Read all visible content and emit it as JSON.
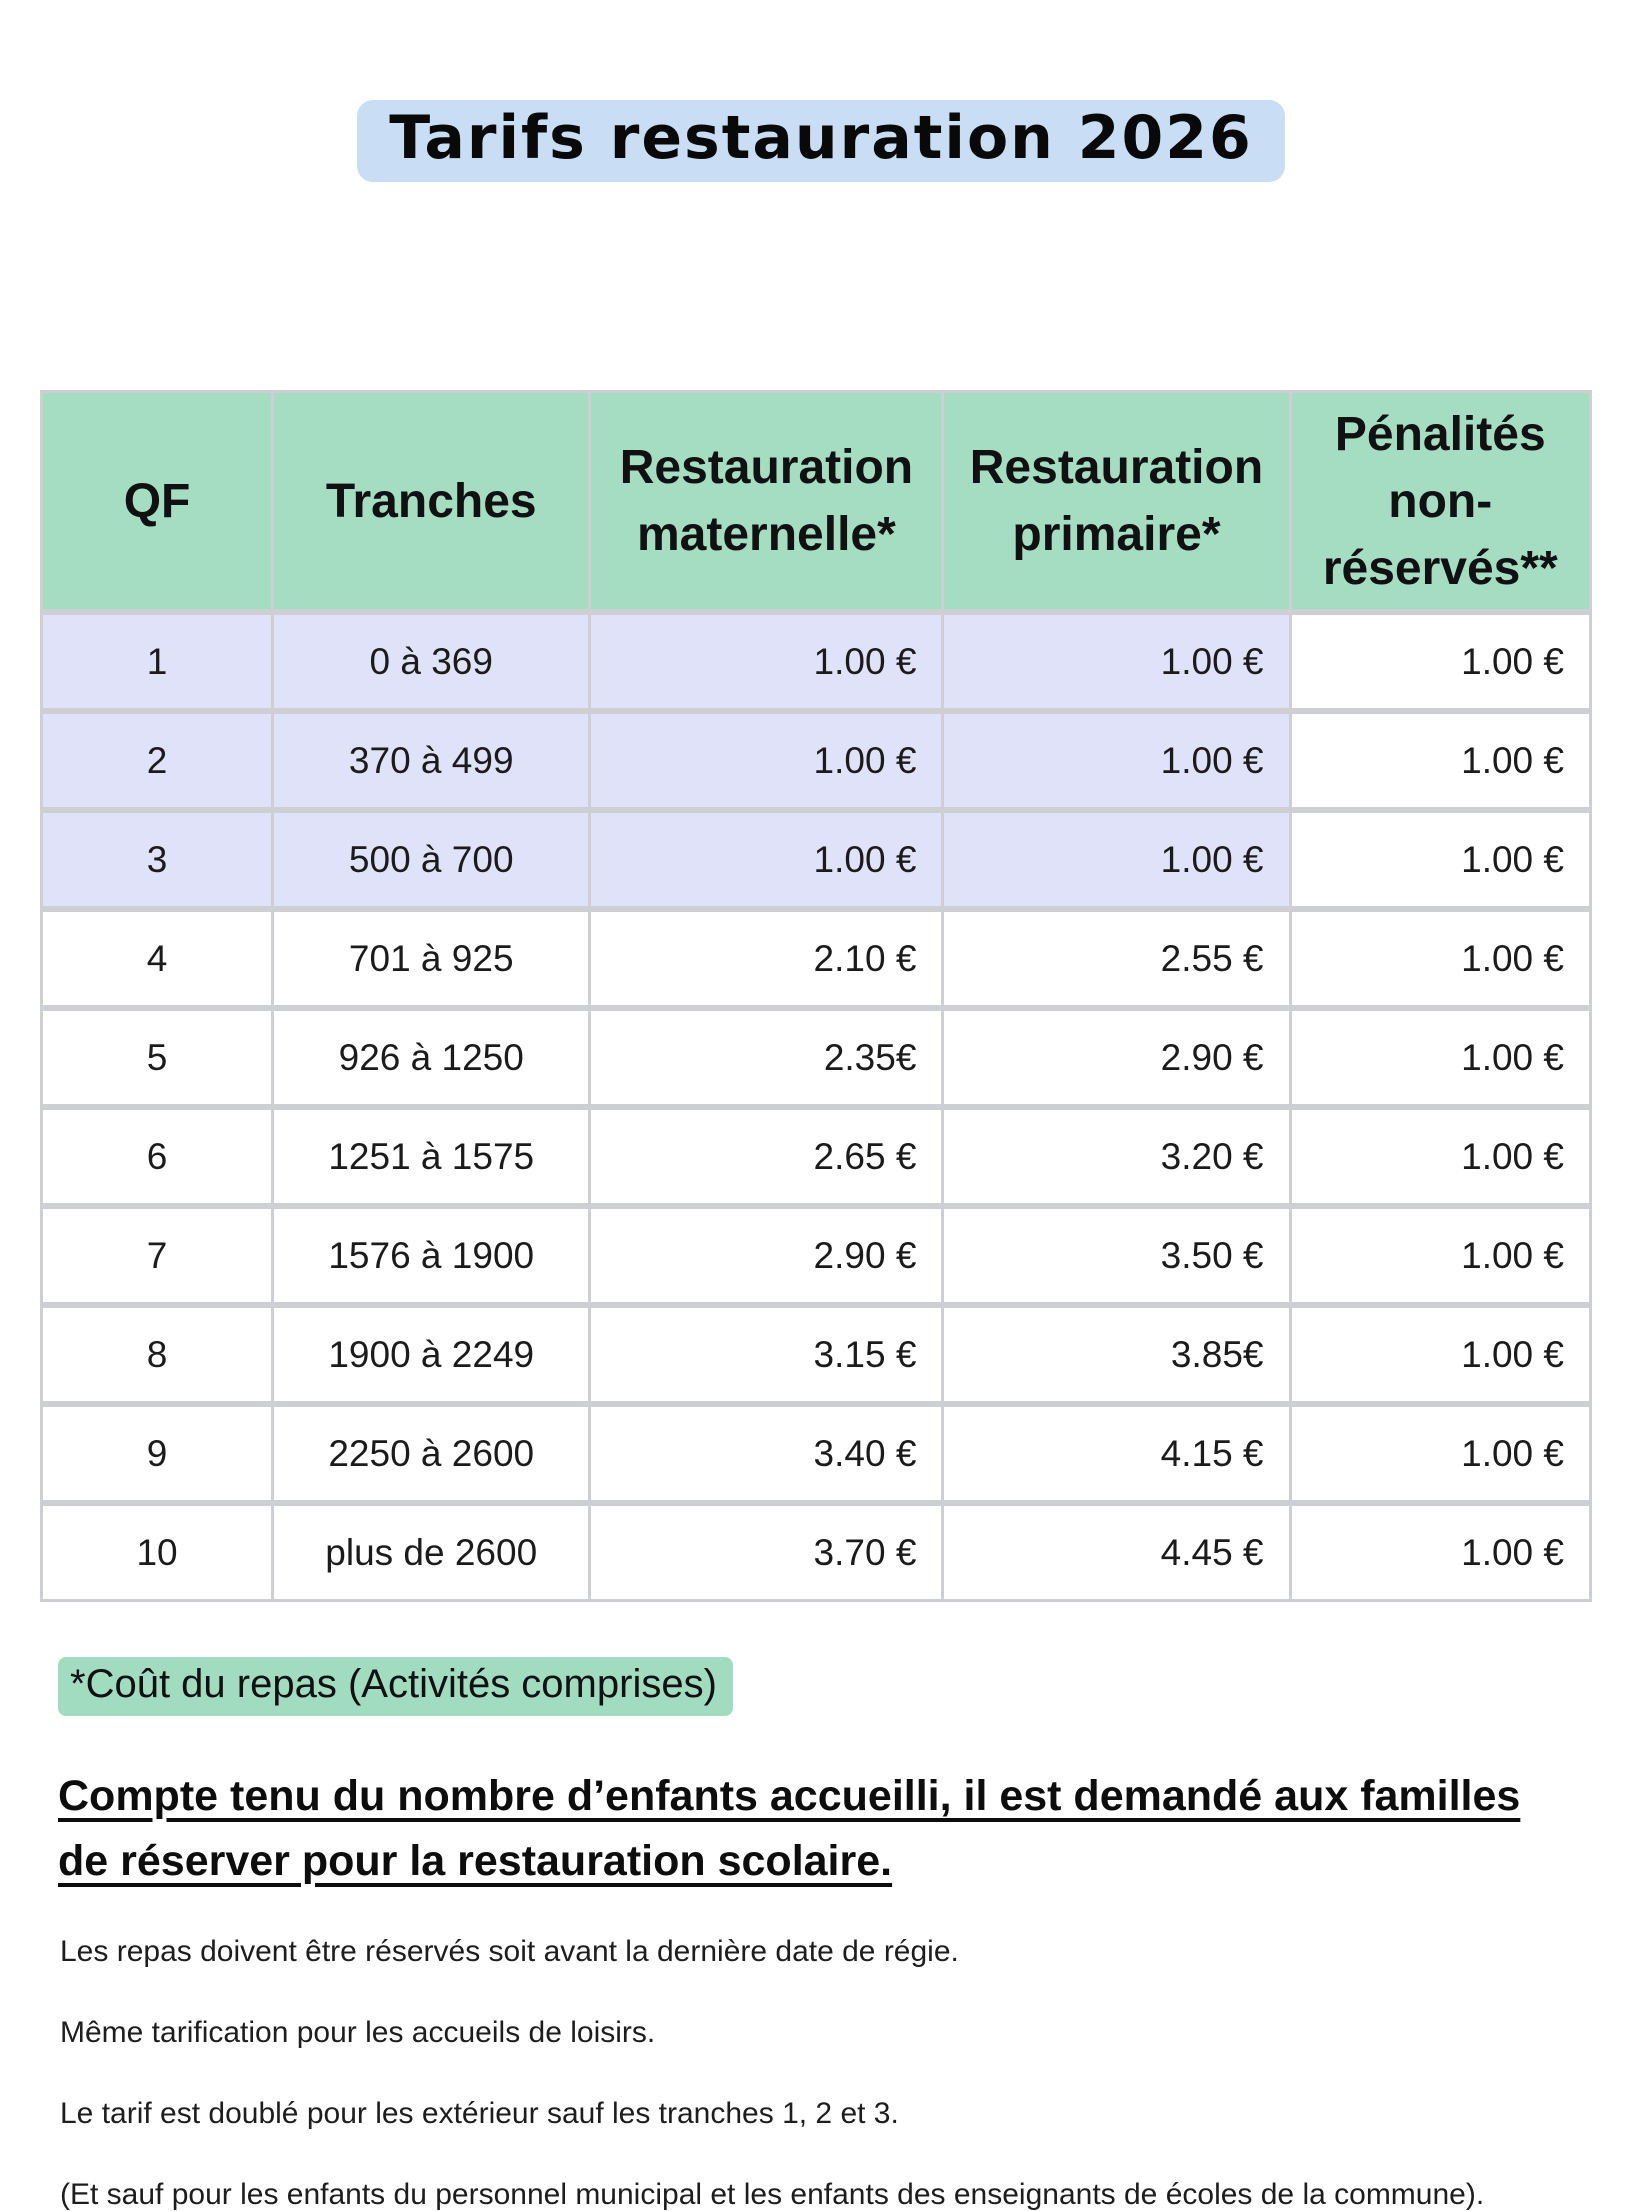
{
  "title": "Tarifs restauration 2026",
  "table": {
    "columns": [
      "QF",
      "Tranches",
      "Restauration\nmaternelle*",
      "Restauration\nprimaire*",
      "Pénalités\nnon-\nréservés**"
    ],
    "rows": [
      {
        "qf": "1",
        "tranche": "0 à 369",
        "maternelle": "1.00 €",
        "primaire": "1.00 €",
        "penalites": "1.00 €",
        "highlighted": true
      },
      {
        "qf": "2",
        "tranche": "370 à 499",
        "maternelle": "1.00 €",
        "primaire": "1.00 €",
        "penalites": "1.00 €",
        "highlighted": true
      },
      {
        "qf": "3",
        "tranche": "500 à 700",
        "maternelle": "1.00 €",
        "primaire": "1.00 €",
        "penalites": "1.00 €",
        "highlighted": true
      },
      {
        "qf": "4",
        "tranche": "701 à 925",
        "maternelle": "2.10 €",
        "primaire": "2.55 €",
        "penalites": "1.00 €",
        "highlighted": false
      },
      {
        "qf": "5",
        "tranche": "926 à 1250",
        "maternelle": "2.35€",
        "primaire": "2.90 €",
        "penalites": "1.00 €",
        "highlighted": false
      },
      {
        "qf": "6",
        "tranche": "1251 à 1575",
        "maternelle": "2.65 €",
        "primaire": "3.20 €",
        "penalites": "1.00 €",
        "highlighted": false
      },
      {
        "qf": "7",
        "tranche": "1576 à 1900",
        "maternelle": "2.90 €",
        "primaire": "3.50 €",
        "penalites": "1.00 €",
        "highlighted": false
      },
      {
        "qf": "8",
        "tranche": "1900 à 2249",
        "maternelle": "3.15 €",
        "primaire": "3.85€",
        "penalites": "1.00 €",
        "highlighted": false
      },
      {
        "qf": "9",
        "tranche": "2250 à 2600",
        "maternelle": "3.40 €",
        "primaire": "4.15 €",
        "penalites": "1.00 €",
        "highlighted": false
      },
      {
        "qf": "10",
        "tranche": "plus de 2600",
        "maternelle": "3.70 €",
        "primaire": "4.45 €",
        "penalites": "1.00 €",
        "highlighted": false
      }
    ]
  },
  "notes": {
    "meal_cost": "*Coût du repas (Activités comprises)",
    "reservation": "Compte tenu du nombre d’enfants accueilli, il est demandé aux familles \nde réserver pour la restauration scolaire.",
    "lines": [
      "Les repas doivent être réservés soit avant la dernière date de régie.",
      "Même tarification pour les accueils de loisirs.",
      "Le tarif est doublé pour les extérieur sauf les tranches 1, 2 et 3.",
      "(Et sauf pour les enfants du personnel municipal et les enfants des enseignants de écoles de la commune)."
    ]
  },
  "colors": {
    "title_highlight": "#c9def5",
    "header_green": "#a4ddc2",
    "row_lavender": "#dfe2f8",
    "note_green": "#a2dcc0",
    "grid_border": "#cdcfd3",
    "text": "#1b1b1b"
  }
}
